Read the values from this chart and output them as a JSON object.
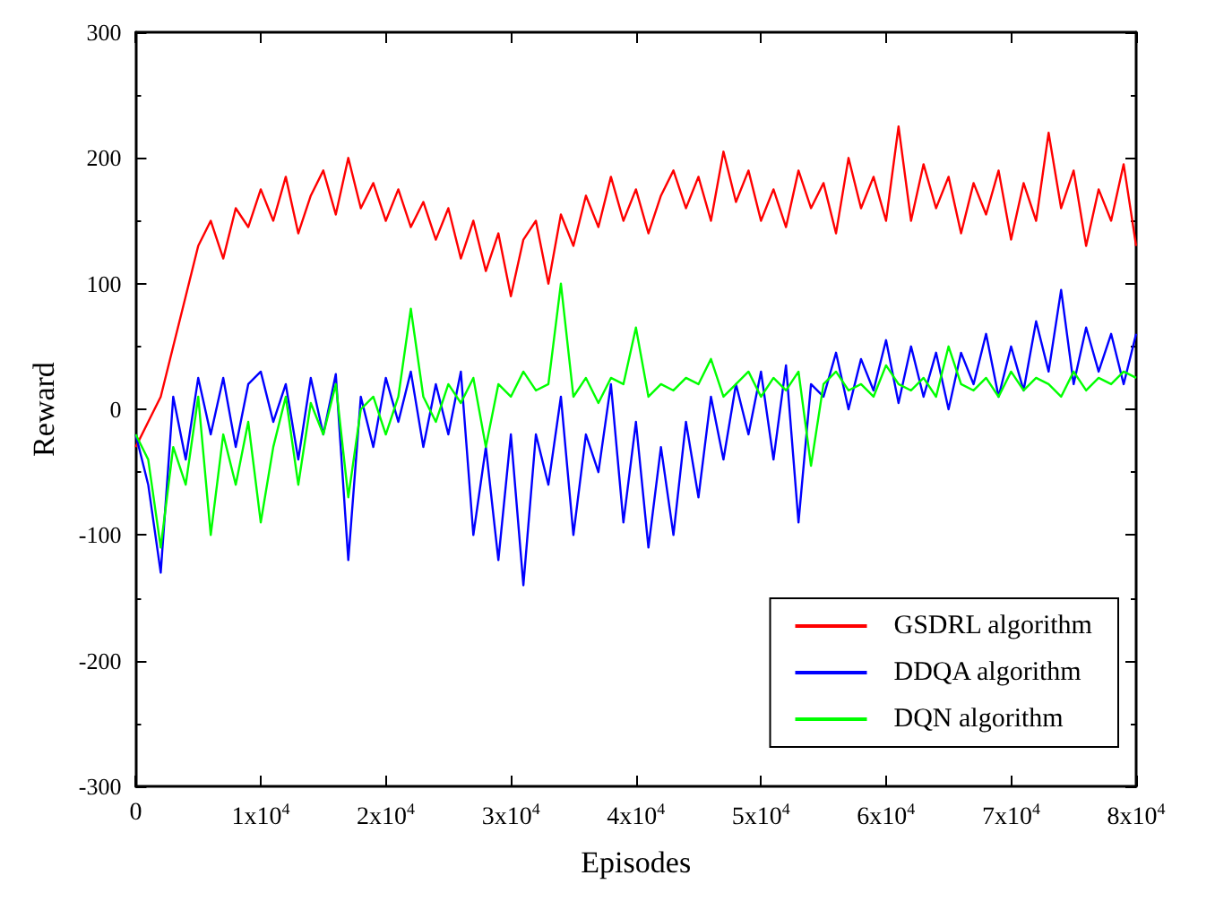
{
  "chart_data": {
    "type": "line",
    "xlabel": "Episodes",
    "ylabel": "Reward",
    "x": [
      0,
      1000,
      2000,
      3000,
      4000,
      5000,
      6000,
      7000,
      8000,
      9000,
      10000,
      11000,
      12000,
      13000,
      14000,
      15000,
      16000,
      17000,
      18000,
      19000,
      20000,
      21000,
      22000,
      23000,
      24000,
      25000,
      26000,
      27000,
      28000,
      29000,
      30000,
      31000,
      32000,
      33000,
      34000,
      35000,
      36000,
      37000,
      38000,
      39000,
      40000,
      41000,
      42000,
      43000,
      44000,
      45000,
      46000,
      47000,
      48000,
      49000,
      50000,
      51000,
      52000,
      53000,
      54000,
      55000,
      56000,
      57000,
      58000,
      59000,
      60000,
      61000,
      62000,
      63000,
      64000,
      65000,
      66000,
      67000,
      68000,
      69000,
      70000,
      71000,
      72000,
      73000,
      74000,
      75000,
      76000,
      77000,
      78000,
      79000,
      80000
    ],
    "series": [
      {
        "name": "GSDRL algorithm",
        "color": "#ff0000",
        "values": [
          -30,
          -10,
          10,
          50,
          90,
          130,
          150,
          120,
          160,
          145,
          175,
          150,
          185,
          140,
          170,
          190,
          155,
          200,
          160,
          180,
          150,
          175,
          145,
          165,
          135,
          160,
          120,
          150,
          110,
          140,
          90,
          135,
          150,
          100,
          155,
          130,
          170,
          145,
          185,
          150,
          175,
          140,
          170,
          190,
          160,
          185,
          150,
          205,
          165,
          190,
          150,
          175,
          145,
          190,
          160,
          180,
          140,
          200,
          160,
          185,
          150,
          225,
          150,
          195,
          160,
          185,
          140,
          180,
          155,
          190,
          135,
          180,
          150,
          220,
          160,
          190,
          130,
          175,
          150,
          195,
          130
        ]
      },
      {
        "name": "DDQA algorithm",
        "color": "#0000ff",
        "values": [
          -20,
          -60,
          -130,
          10,
          -40,
          25,
          -20,
          25,
          -30,
          20,
          30,
          -10,
          20,
          -40,
          25,
          -20,
          28,
          -120,
          10,
          -30,
          25,
          -10,
          30,
          -30,
          20,
          -20,
          30,
          -100,
          -30,
          -120,
          -20,
          -140,
          -20,
          -60,
          10,
          -100,
          -20,
          -50,
          20,
          -90,
          -10,
          -110,
          -30,
          -100,
          -10,
          -70,
          10,
          -40,
          20,
          -20,
          30,
          -40,
          35,
          -90,
          20,
          10,
          45,
          0,
          40,
          15,
          55,
          5,
          50,
          10,
          45,
          0,
          45,
          20,
          60,
          10,
          50,
          15,
          70,
          30,
          95,
          20,
          65,
          30,
          60,
          20,
          60
        ]
      },
      {
        "name": "DQN algorithm",
        "color": "#00ff00",
        "values": [
          -20,
          -40,
          -110,
          -30,
          -60,
          10,
          -100,
          -20,
          -60,
          -10,
          -90,
          -30,
          10,
          -60,
          5,
          -20,
          20,
          -70,
          0,
          10,
          -20,
          10,
          80,
          10,
          -10,
          20,
          5,
          25,
          -30,
          20,
          10,
          30,
          15,
          20,
          100,
          10,
          25,
          5,
          25,
          20,
          65,
          10,
          20,
          15,
          25,
          20,
          40,
          10,
          20,
          30,
          10,
          25,
          15,
          30,
          -45,
          20,
          30,
          15,
          20,
          10,
          35,
          20,
          15,
          25,
          10,
          50,
          20,
          15,
          25,
          10,
          30,
          15,
          25,
          20,
          10,
          30,
          15,
          25,
          20,
          30,
          25
        ]
      }
    ],
    "xlim": [
      0,
      80000
    ],
    "xticks": [
      0,
      {
        "value": 10000,
        "label": "1x10$^{4}$"
      },
      {
        "value": 20000,
        "label": "2x10$^{4}$"
      },
      {
        "value": 30000,
        "label": "3x10$^{4}$"
      },
      {
        "value": 40000,
        "label": "4x10$^{4}$"
      },
      {
        "value": 50000,
        "label": "5x10$^{4}$"
      },
      {
        "value": 60000,
        "label": "6x10$^{4}$"
      },
      {
        "value": 70000,
        "label": "7x10$^{4}$"
      },
      {
        "value": 80000,
        "label": "8x10$^{4}$"
      }
    ],
    "ylim": [
      -300,
      300
    ],
    "yticks": [
      -300,
      -200,
      -100,
      0,
      100,
      200,
      300
    ],
    "legend": "bottom right"
  }
}
